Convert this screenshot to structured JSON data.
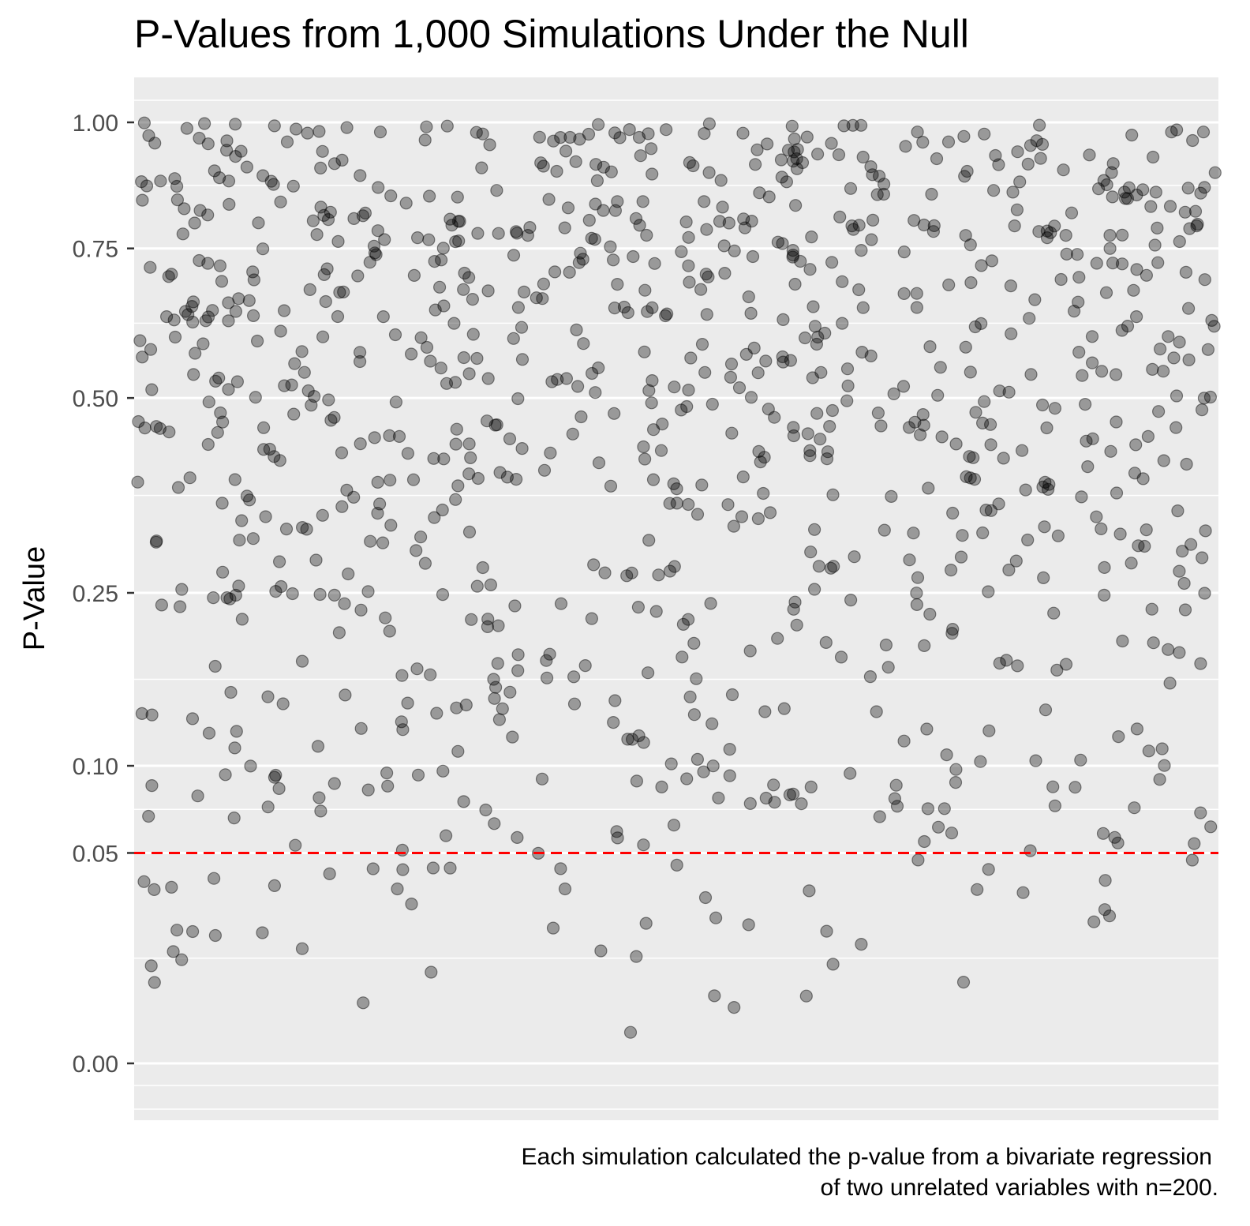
{
  "chart_data": {
    "type": "scatter",
    "title": "P-Values from 1,000 Simulations Under the Null",
    "xlabel": "",
    "ylabel": "P-Value",
    "caption": [
      "Each simulation calculated the p-value from a bivariate regression",
      "of two unrelated variables with n=200."
    ],
    "x_axis": "jittered, no ticks",
    "ylim": [
      -0.05,
      1.05
    ],
    "y_scale": "sqrt",
    "y_ticks": [
      0.0,
      0.05,
      0.1,
      0.25,
      0.5,
      0.75,
      1.0
    ],
    "y_tick_labels": [
      "0.00",
      "0.05",
      "0.10",
      "0.25",
      "0.50",
      "0.75",
      "1.00"
    ],
    "reference_line": {
      "y": 0.05,
      "style": "dashed",
      "color": "#ff0000"
    },
    "point_count": 1000,
    "point_color": "#000000",
    "point_opacity": 0.35,
    "panel_background": "#ebebeb",
    "grid": true,
    "legend": "none"
  }
}
